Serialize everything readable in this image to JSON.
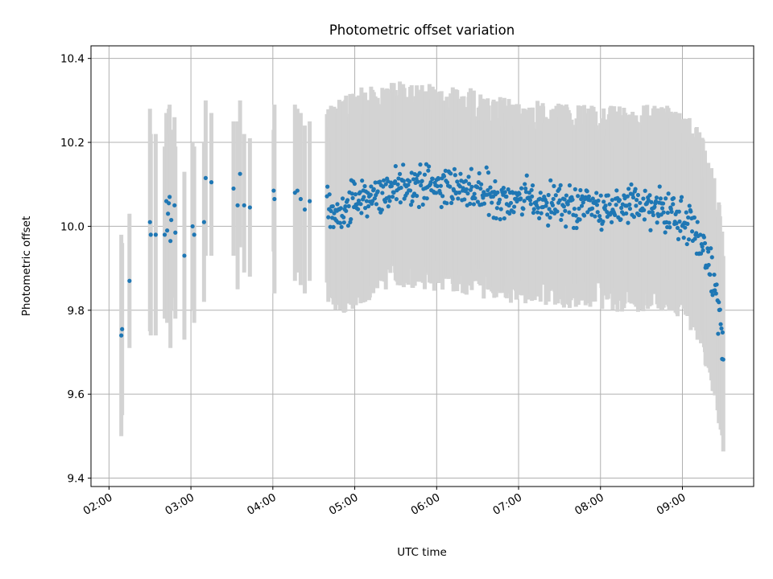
{
  "chart_data": {
    "type": "scatter",
    "title": "Photometric offset variation",
    "xlabel": "UTC time",
    "ylabel": "Photometric offset",
    "x_unit": "hours UTC",
    "xlim": [
      1.78,
      9.87
    ],
    "ylim": [
      9.38,
      10.43
    ],
    "x_ticks": [
      2,
      3,
      4,
      5,
      6,
      7,
      8,
      9
    ],
    "x_tick_labels": [
      "02:00",
      "03:00",
      "04:00",
      "05:00",
      "06:00",
      "07:00",
      "08:00",
      "09:00"
    ],
    "y_ticks": [
      9.4,
      9.6,
      9.8,
      10.0,
      10.2,
      10.4
    ],
    "y_tick_labels": [
      "9.4",
      "9.6",
      "9.8",
      "10.0",
      "10.2",
      "10.4"
    ],
    "grid": true,
    "point_color": "#1f77b4",
    "errorbar_color": "#d3d3d3",
    "sparse_points": [
      {
        "x": 2.15,
        "y": 9.74,
        "lo": 9.5,
        "hi": 9.98
      },
      {
        "x": 2.16,
        "y": 9.755,
        "lo": 9.55,
        "hi": 9.96
      },
      {
        "x": 2.25,
        "y": 9.87,
        "lo": 9.71,
        "hi": 10.03
      },
      {
        "x": 2.5,
        "y": 10.01,
        "lo": 9.75,
        "hi": 10.28
      },
      {
        "x": 2.51,
        "y": 9.98,
        "lo": 9.74,
        "hi": 10.22
      },
      {
        "x": 2.57,
        "y": 9.98,
        "lo": 9.74,
        "hi": 10.22
      },
      {
        "x": 2.68,
        "y": 9.98,
        "lo": 9.78,
        "hi": 10.19
      },
      {
        "x": 2.7,
        "y": 10.06,
        "lo": 9.84,
        "hi": 10.27
      },
      {
        "x": 2.71,
        "y": 9.99,
        "lo": 9.77,
        "hi": 10.21
      },
      {
        "x": 2.72,
        "y": 10.03,
        "lo": 9.8,
        "hi": 10.26
      },
      {
        "x": 2.73,
        "y": 10.055,
        "lo": 9.85,
        "hi": 10.28
      },
      {
        "x": 2.74,
        "y": 10.07,
        "lo": 9.85,
        "hi": 10.29
      },
      {
        "x": 2.75,
        "y": 9.965,
        "lo": 9.71,
        "hi": 10.22
      },
      {
        "x": 2.76,
        "y": 10.015,
        "lo": 9.8,
        "hi": 10.23
      },
      {
        "x": 2.8,
        "y": 10.05,
        "lo": 9.83,
        "hi": 10.26
      },
      {
        "x": 2.81,
        "y": 9.985,
        "lo": 9.78,
        "hi": 10.19
      },
      {
        "x": 2.92,
        "y": 9.93,
        "lo": 9.73,
        "hi": 10.13
      },
      {
        "x": 3.02,
        "y": 10.0,
        "lo": 9.8,
        "hi": 10.2
      },
      {
        "x": 3.04,
        "y": 9.98,
        "lo": 9.77,
        "hi": 10.19
      },
      {
        "x": 3.16,
        "y": 10.01,
        "lo": 9.82,
        "hi": 10.2
      },
      {
        "x": 3.18,
        "y": 10.115,
        "lo": 9.93,
        "hi": 10.3
      },
      {
        "x": 3.25,
        "y": 10.105,
        "lo": 9.93,
        "hi": 10.27
      },
      {
        "x": 3.52,
        "y": 10.09,
        "lo": 9.93,
        "hi": 10.25
      },
      {
        "x": 3.57,
        "y": 10.05,
        "lo": 9.85,
        "hi": 10.25
      },
      {
        "x": 3.6,
        "y": 10.125,
        "lo": 9.95,
        "hi": 10.3
      },
      {
        "x": 3.65,
        "y": 10.05,
        "lo": 9.89,
        "hi": 10.22
      },
      {
        "x": 3.72,
        "y": 10.045,
        "lo": 9.88,
        "hi": 10.21
      },
      {
        "x": 4.01,
        "y": 10.085,
        "lo": 9.94,
        "hi": 10.23
      },
      {
        "x": 4.02,
        "y": 10.065,
        "lo": 9.84,
        "hi": 10.29
      },
      {
        "x": 4.27,
        "y": 10.08,
        "lo": 9.87,
        "hi": 10.29
      },
      {
        "x": 4.3,
        "y": 10.085,
        "lo": 9.89,
        "hi": 10.28
      },
      {
        "x": 4.34,
        "y": 10.065,
        "lo": 9.86,
        "hi": 10.27
      },
      {
        "x": 4.39,
        "y": 10.04,
        "lo": 9.84,
        "hi": 10.24
      },
      {
        "x": 4.45,
        "y": 10.06,
        "lo": 9.87,
        "hi": 10.25
      }
    ],
    "dense_profile": [
      {
        "x": 4.66,
        "mean": 10.05,
        "lower": 9.85,
        "upper": 10.25
      },
      {
        "x": 4.8,
        "mean": 10.02,
        "lower": 9.82,
        "upper": 10.25
      },
      {
        "x": 5.0,
        "mean": 10.06,
        "lower": 9.85,
        "upper": 10.28
      },
      {
        "x": 5.3,
        "mean": 10.08,
        "lower": 9.88,
        "upper": 10.29
      },
      {
        "x": 5.6,
        "mean": 10.1,
        "lower": 9.9,
        "upper": 10.3
      },
      {
        "x": 6.0,
        "mean": 10.1,
        "lower": 9.89,
        "upper": 10.29
      },
      {
        "x": 6.4,
        "mean": 10.09,
        "lower": 9.88,
        "upper": 10.28
      },
      {
        "x": 6.8,
        "mean": 10.07,
        "lower": 9.86,
        "upper": 10.26
      },
      {
        "x": 7.2,
        "mean": 10.06,
        "lower": 9.86,
        "upper": 10.25
      },
      {
        "x": 7.6,
        "mean": 10.05,
        "lower": 9.85,
        "upper": 10.24
      },
      {
        "x": 8.0,
        "mean": 10.04,
        "lower": 9.84,
        "upper": 10.24
      },
      {
        "x": 8.4,
        "mean": 10.05,
        "lower": 9.84,
        "upper": 10.24
      },
      {
        "x": 8.8,
        "mean": 10.04,
        "lower": 9.84,
        "upper": 10.24
      },
      {
        "x": 9.0,
        "mean": 10.02,
        "lower": 9.82,
        "upper": 10.22
      },
      {
        "x": 9.15,
        "mean": 9.99,
        "lower": 9.78,
        "upper": 10.2
      },
      {
        "x": 9.25,
        "mean": 9.95,
        "lower": 9.74,
        "upper": 10.16
      },
      {
        "x": 9.35,
        "mean": 9.88,
        "lower": 9.66,
        "upper": 10.1
      },
      {
        "x": 9.45,
        "mean": 9.8,
        "lower": 9.56,
        "upper": 10.02
      },
      {
        "x": 9.5,
        "mean": 9.7,
        "lower": 9.46,
        "upper": 9.93
      }
    ],
    "dense_x_range": [
      4.66,
      9.5
    ],
    "dense_point_count": 600
  }
}
